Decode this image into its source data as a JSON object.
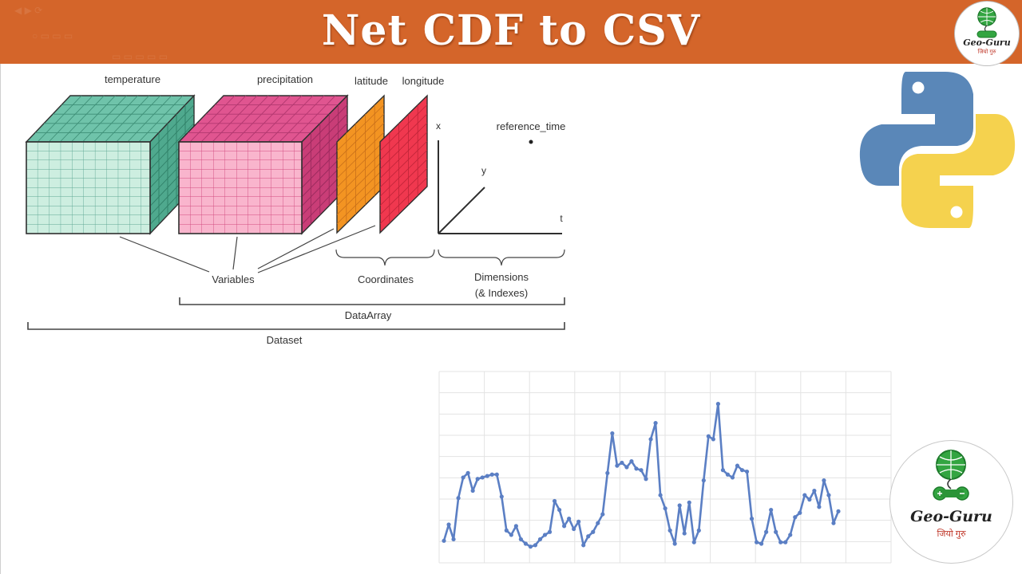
{
  "header": {
    "title": "Net CDF to CSV"
  },
  "logo": {
    "name": "Geo-Guru",
    "tagline": "जियो गुरु"
  },
  "diagram": {
    "labels": {
      "temperature": "temperature",
      "precipitation": "precipitation",
      "latitude": "latitude",
      "longitude": "longitude",
      "x_axis": "x",
      "y_axis": "y",
      "t_axis": "t",
      "reference_time": "reference_time",
      "variables": "Variables",
      "coordinates": "Coordinates",
      "dimensions": "Dimensions",
      "indexes": "(& Indexes)",
      "data_array": "DataArray",
      "dataset": "Dataset"
    },
    "colors": {
      "temperature_front": "#cdeee0",
      "temperature_top": "#6fc3aa",
      "temperature_side": "#4fa98e",
      "precipitation_front": "#f9b5cd",
      "precipitation_top": "#e05590",
      "precipitation_side": "#c93d77",
      "latitude": "#f39422",
      "longitude": "#f0384f"
    }
  },
  "python_logo": {
    "colors": {
      "blue": "#5a87b8",
      "yellow": "#f5d24e"
    }
  },
  "chart_data": {
    "type": "line",
    "series": [
      {
        "values": [
          1.5,
          2.6,
          1.6,
          4.4,
          5.8,
          6.1,
          4.9,
          5.7,
          5.8,
          5.9,
          6.0,
          6.0,
          4.5,
          2.2,
          1.9,
          2.5,
          1.6,
          1.3,
          1.1,
          1.2,
          1.6,
          1.9,
          2.1,
          4.2,
          3.6,
          2.5,
          3.0,
          2.3,
          2.8,
          1.2,
          1.8,
          2.1,
          2.7,
          3.3,
          6.1,
          8.8,
          6.6,
          6.8,
          6.5,
          6.9,
          6.4,
          6.3,
          5.7,
          8.4,
          9.5,
          4.6,
          3.7,
          2.2,
          1.3,
          3.9,
          2.0,
          4.1,
          1.4,
          2.2,
          5.6,
          8.6,
          8.4,
          10.8,
          6.3,
          6.0,
          5.8,
          6.6,
          6.3,
          6.2,
          3.0,
          1.4,
          1.3,
          2.1,
          3.6,
          2.1,
          1.4,
          1.4,
          1.9,
          3.1,
          3.4,
          4.6,
          4.3,
          4.9,
          3.8,
          5.6,
          4.6,
          2.7,
          3.5
        ]
      }
    ],
    "ylim": [
      0,
      13
    ],
    "grid": true,
    "color": "#5b7fc4"
  }
}
